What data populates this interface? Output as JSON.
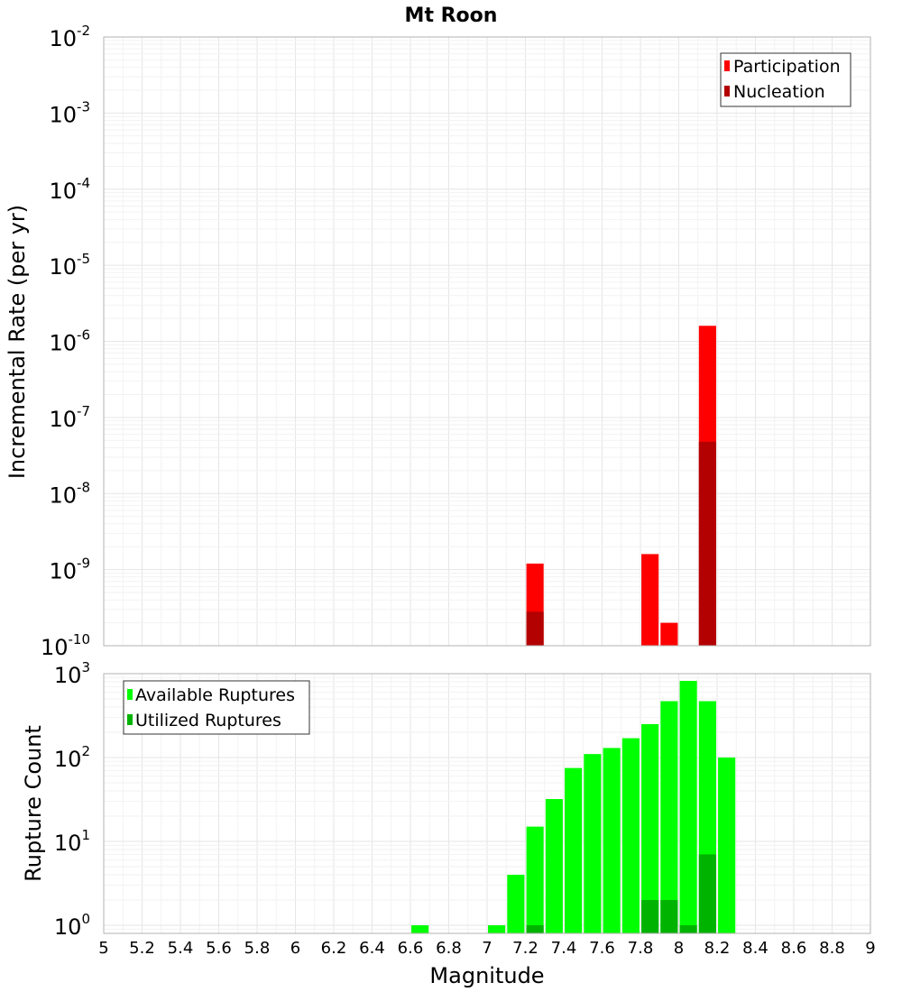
{
  "title": "Mt Roon",
  "colors": {
    "participation": "#ff0000",
    "nucleation": "#b30000",
    "available": "#00ff00",
    "utilized": "#00b300",
    "grid_major": "#e6e6e6",
    "grid_minor": "#f2f2f2",
    "frame": "#b3b3b3"
  },
  "chart_data": [
    {
      "type": "bar",
      "name": "rate",
      "ylabel": "Incremental Rate (per yr)",
      "xlabel": "",
      "xlim": [
        5,
        9
      ],
      "ylim": [
        1e-10,
        0.01
      ],
      "y_scale": "log",
      "grid": true,
      "legend_placement": "top-right",
      "bar_width": 0.09,
      "y_ticks": [
        {
          "base": "10",
          "exp": "-10",
          "value": 1e-10
        },
        {
          "base": "10",
          "exp": "-9",
          "value": 1e-09
        },
        {
          "base": "10",
          "exp": "-8",
          "value": 1e-08
        },
        {
          "base": "10",
          "exp": "-7",
          "value": 1e-07
        },
        {
          "base": "10",
          "exp": "-6",
          "value": 1e-06
        },
        {
          "base": "10",
          "exp": "-5",
          "value": 1e-05
        },
        {
          "base": "10",
          "exp": "-4",
          "value": 0.0001
        },
        {
          "base": "10",
          "exp": "-3",
          "value": 0.001
        },
        {
          "base": "10",
          "exp": "-2",
          "value": 0.01
        }
      ],
      "series": [
        {
          "name": "Participation",
          "color_key": "participation",
          "points": [
            [
              7.25,
              1.2e-09
            ],
            [
              7.85,
              1.6e-09
            ],
            [
              7.95,
              2e-10
            ],
            [
              8.15,
              1.6e-06
            ]
          ]
        },
        {
          "name": "Nucleation",
          "color_key": "nucleation",
          "points": [
            [
              7.25,
              2.8e-10
            ],
            [
              8.15,
              4.8e-08
            ]
          ]
        }
      ]
    },
    {
      "type": "bar",
      "name": "count",
      "ylabel": "Rupture Count",
      "xlabel": "Magnitude",
      "xlim": [
        5,
        9
      ],
      "ylim": [
        0.8,
        1000
      ],
      "y_scale": "log",
      "grid": true,
      "legend_placement": "top-left",
      "bar_width": 0.09,
      "y_ticks": [
        {
          "base": "10",
          "exp": "0",
          "value": 1
        },
        {
          "base": "10",
          "exp": "1",
          "value": 10
        },
        {
          "base": "10",
          "exp": "2",
          "value": 100
        },
        {
          "base": "10",
          "exp": "3",
          "value": 1000
        }
      ],
      "x_ticks": [
        "5",
        "5.2",
        "5.4",
        "5.6",
        "5.8",
        "6",
        "6.2",
        "6.4",
        "6.6",
        "6.8",
        "7",
        "7.2",
        "7.4",
        "7.6",
        "7.8",
        "8",
        "8.2",
        "8.4",
        "8.6",
        "8.8",
        "9"
      ],
      "series": [
        {
          "name": "Available Ruptures",
          "color_key": "available",
          "points": [
            [
              6.65,
              1
            ],
            [
              7.05,
              1
            ],
            [
              7.15,
              4
            ],
            [
              7.25,
              15
            ],
            [
              7.35,
              32
            ],
            [
              7.45,
              75
            ],
            [
              7.55,
              110
            ],
            [
              7.65,
              130
            ],
            [
              7.75,
              170
            ],
            [
              7.85,
              250
            ],
            [
              7.95,
              470
            ],
            [
              8.05,
              820
            ],
            [
              8.15,
              470
            ],
            [
              8.25,
              100
            ]
          ]
        },
        {
          "name": "Utilized Ruptures",
          "color_key": "utilized",
          "points": [
            [
              7.25,
              1
            ],
            [
              7.85,
              2
            ],
            [
              7.95,
              2
            ],
            [
              8.05,
              1
            ],
            [
              8.15,
              7
            ]
          ]
        }
      ]
    }
  ]
}
